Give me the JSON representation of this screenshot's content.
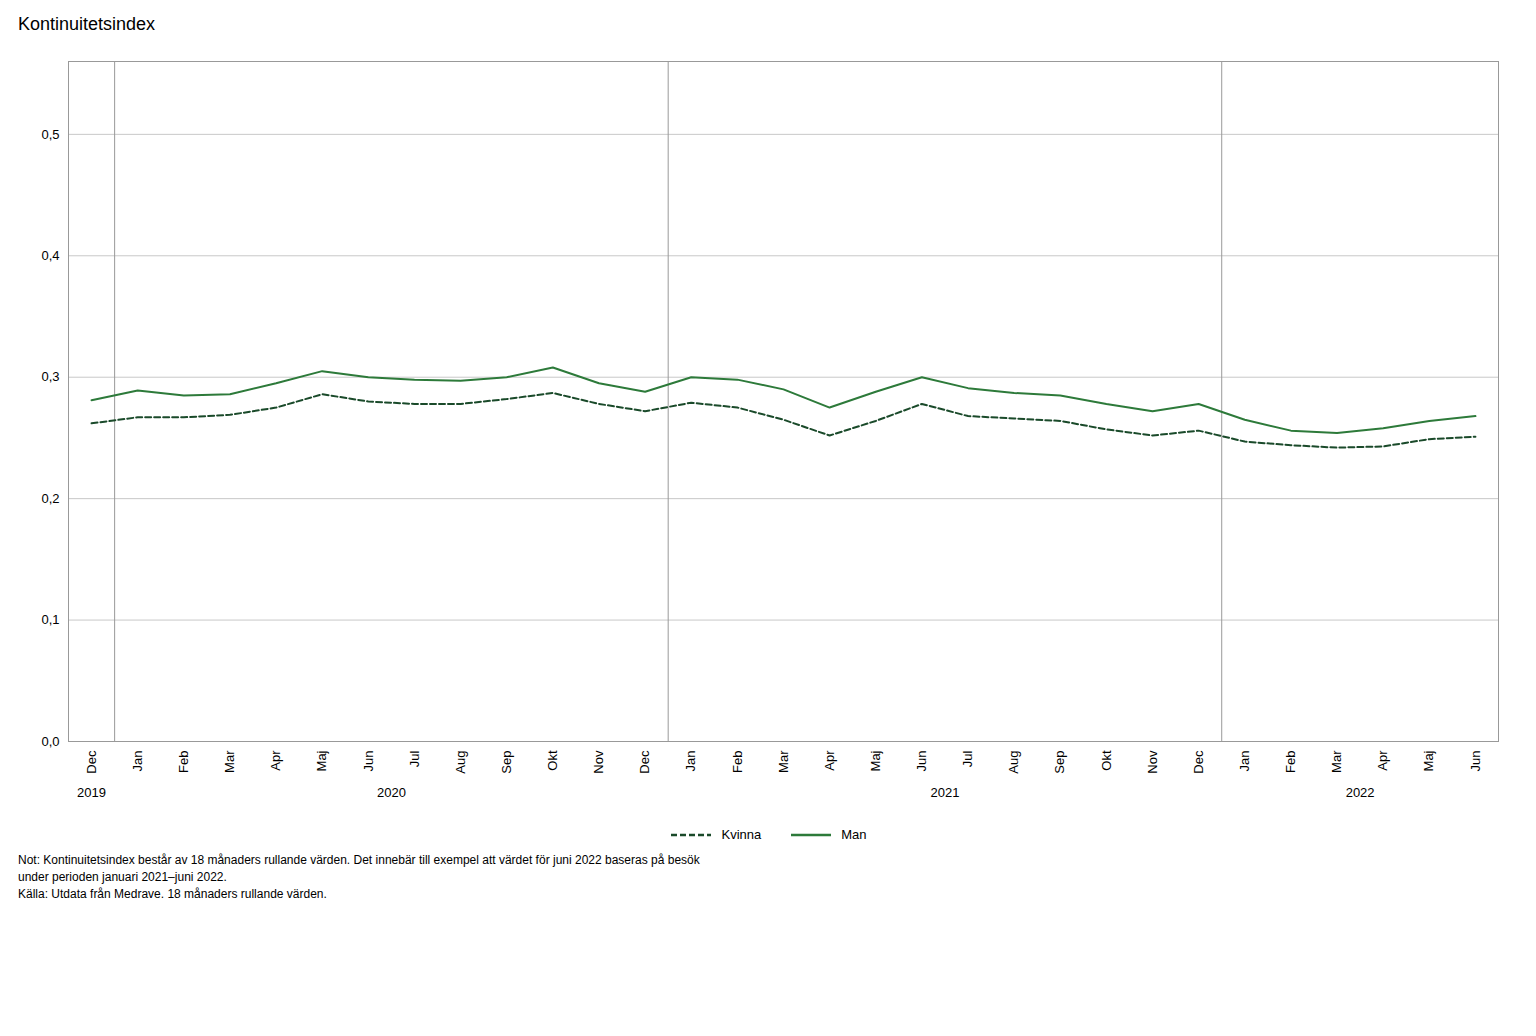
{
  "chart_data": {
    "type": "line",
    "title": "Kontinuitetsindex",
    "categories": [
      "Dec",
      "Jan",
      "Feb",
      "Mar",
      "Apr",
      "Maj",
      "Jun",
      "Jul",
      "Aug",
      "Sep",
      "Okt",
      "Nov",
      "Dec",
      "Jan",
      "Feb",
      "Mar",
      "Apr",
      "Maj",
      "Jun",
      "Jul",
      "Aug",
      "Sep",
      "Okt",
      "Nov",
      "Dec",
      "Jan",
      "Feb",
      "Mar",
      "Apr",
      "Maj",
      "Jun"
    ],
    "category_groups": [
      "2019",
      "2020",
      "2020",
      "2020",
      "2020",
      "2020",
      "2020",
      "2020",
      "2020",
      "2020",
      "2020",
      "2020",
      "2020",
      "2021",
      "2021",
      "2021",
      "2021",
      "2021",
      "2021",
      "2021",
      "2021",
      "2021",
      "2021",
      "2021",
      "2021",
      "2022",
      "2022",
      "2022",
      "2022",
      "2022",
      "2022"
    ],
    "series": [
      {
        "name": "Kvinna",
        "color": "#1a4a2a",
        "line_style": "dashed",
        "values": [
          0.262,
          0.267,
          0.267,
          0.269,
          0.275,
          0.286,
          0.28,
          0.278,
          0.278,
          0.282,
          0.287,
          0.278,
          0.272,
          0.279,
          0.275,
          0.265,
          0.252,
          0.264,
          0.278,
          0.268,
          0.266,
          0.264,
          0.257,
          0.252,
          0.256,
          0.247,
          0.244,
          0.242,
          0.243,
          0.249,
          0.251
        ]
      },
      {
        "name": "Man",
        "color": "#2d7a3a",
        "line_style": "solid",
        "values": [
          0.281,
          0.289,
          0.285,
          0.286,
          0.295,
          0.305,
          0.3,
          0.298,
          0.297,
          0.3,
          0.308,
          0.295,
          0.288,
          0.3,
          0.298,
          0.29,
          0.275,
          0.288,
          0.3,
          0.291,
          0.287,
          0.285,
          0.278,
          0.272,
          0.278,
          0.265,
          0.256,
          0.254,
          0.258,
          0.264,
          0.268
        ]
      }
    ],
    "ylim": [
      0.0,
      0.56
    ],
    "yticks": [
      {
        "value": 0.0,
        "label": "0,0"
      },
      {
        "value": 0.1,
        "label": "0,1"
      },
      {
        "value": 0.2,
        "label": "0,2"
      },
      {
        "value": 0.3,
        "label": "0,3"
      },
      {
        "value": 0.4,
        "label": "0,4"
      },
      {
        "value": 0.5,
        "label": "0,5"
      }
    ],
    "grid": true,
    "legend": "bottom",
    "note": "Not: Kontinuitetsindex består av 18 månaders rullande värden. Det innebär till exempel att värdet för juni 2022 baseras på besök\nunder perioden januari 2021–juni 2022.\nKälla: Utdata från Medrave. 18 månaders rullande värden."
  }
}
